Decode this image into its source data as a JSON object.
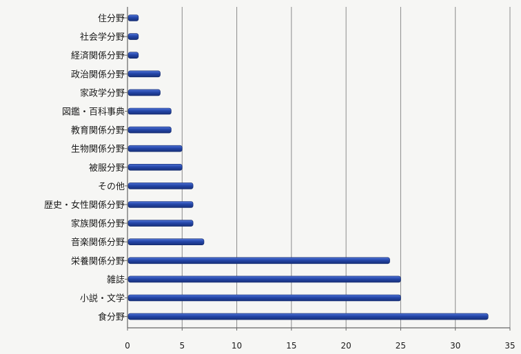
{
  "chart_data": {
    "type": "bar",
    "orientation": "horizontal",
    "categories": [
      "住分野",
      "社会学分野",
      "経済関係分野",
      "政治関係分野",
      "家政学分野",
      "図鑑・百科事典",
      "教育関係分野",
      "生物関係分野",
      "被服分野",
      "その他",
      "歴史・女性関係分野",
      "家族関係分野",
      "音楽関係分野",
      "栄養関係分野",
      "雑誌",
      "小説・文学",
      "食分野"
    ],
    "values": [
      1,
      1,
      1,
      3,
      3,
      4,
      4,
      5,
      5,
      6,
      6,
      6,
      7,
      24,
      25,
      25,
      33
    ],
    "xlim": [
      0,
      35
    ],
    "xticks": [
      "0",
      "5",
      "10",
      "15",
      "20",
      "25",
      "30",
      "35"
    ],
    "grid": "vertical",
    "colors": {
      "bar": "#2446a8",
      "bar_highlight": "#4f73d6",
      "grid": "#8a8a8a",
      "axis": "#666666"
    }
  }
}
